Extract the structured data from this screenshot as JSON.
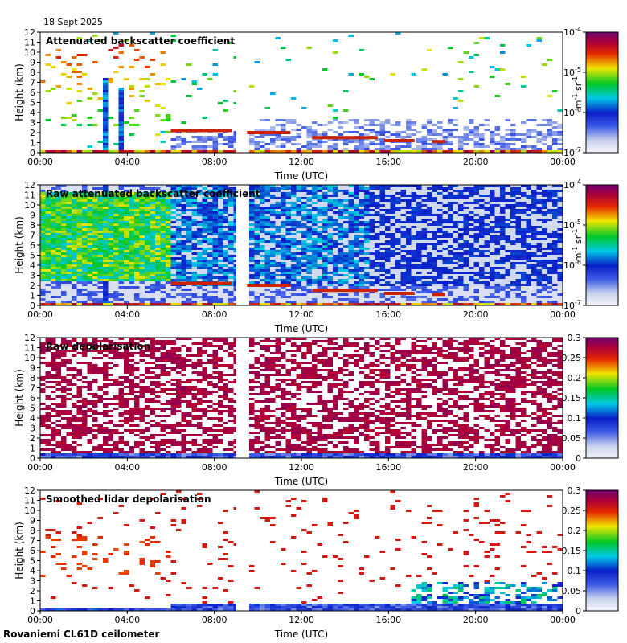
{
  "date_label": "18 Sept 2025",
  "site_label": "Rovaniemi CL61D ceilometer",
  "chart_data": [
    {
      "type": "heatmap",
      "title": "Attenuated backscatter coefficient",
      "xlabel": "Time (UTC)",
      "ylabel": "Height (km)",
      "x_ticks": [
        "00:00",
        "04:00",
        "08:00",
        "12:00",
        "16:00",
        "20:00",
        "00:00"
      ],
      "y_ticks": [
        "0",
        "1",
        "2",
        "3",
        "4",
        "5",
        "6",
        "7",
        "8",
        "9",
        "10",
        "11",
        "12"
      ],
      "ylim": [
        0,
        12
      ],
      "xlim_hours": [
        0,
        24
      ],
      "data_gap_hours": [
        9.0,
        9.45
      ],
      "colorbar": {
        "scale": "log",
        "range": [
          1e-07,
          0.0001
        ],
        "tick_labels": [
          "10^-7",
          "10^-6",
          "10^-5",
          "10^-4"
        ],
        "unit": "m^-1 sr^-1"
      },
      "features": [
        {
          "name": "cloud layer",
          "t_start": 6.0,
          "t_end": 8.8,
          "height_km": 2.2
        },
        {
          "name": "cloud layer",
          "t_start": 9.5,
          "t_end": 11.5,
          "height_km": 2.0
        },
        {
          "name": "cloud layer",
          "t_start": 12.5,
          "t_end": 15.5,
          "height_km": 1.5
        },
        {
          "name": "cloud layer",
          "t_start": 15.8,
          "t_end": 17.2,
          "height_km": 1.2
        },
        {
          "name": "cloud layer",
          "t_start": 18.0,
          "t_end": 18.6,
          "height_km": 1.1
        }
      ]
    },
    {
      "type": "heatmap",
      "title": "Raw attenuated backscatter coefficient",
      "xlabel": "Time (UTC)",
      "ylabel": "Height (km)",
      "x_ticks": [
        "00:00",
        "04:00",
        "08:00",
        "12:00",
        "16:00",
        "20:00",
        "00:00"
      ],
      "y_ticks": [
        "0",
        "1",
        "2",
        "3",
        "4",
        "5",
        "6",
        "7",
        "8",
        "9",
        "10",
        "11",
        "12"
      ],
      "ylim": [
        0,
        12
      ],
      "xlim_hours": [
        0,
        24
      ],
      "data_gap_hours": [
        9.0,
        9.45
      ],
      "colorbar": {
        "scale": "log",
        "range": [
          1e-07,
          0.0001
        ],
        "tick_labels": [
          "10^-7",
          "10^-6",
          "10^-5",
          "10^-4"
        ],
        "unit": "m^-1 sr^-1"
      }
    },
    {
      "type": "heatmap",
      "title": "Raw depolarisation",
      "xlabel": "Time (UTC)",
      "ylabel": "Height (km)",
      "x_ticks": [
        "00:00",
        "04:00",
        "08:00",
        "12:00",
        "16:00",
        "20:00",
        "00:00"
      ],
      "y_ticks": [
        "0",
        "1",
        "2",
        "3",
        "4",
        "5",
        "6",
        "7",
        "8",
        "9",
        "10",
        "11",
        "12"
      ],
      "ylim": [
        0,
        12
      ],
      "xlim_hours": [
        0,
        24
      ],
      "data_gap_hours": [
        9.0,
        9.45
      ],
      "colorbar": {
        "scale": "linear",
        "range": [
          0,
          0.3
        ],
        "tick_labels": [
          "0",
          "0.05",
          "0.1",
          "0.15",
          "0.2",
          "0.25",
          "0.3"
        ]
      }
    },
    {
      "type": "heatmap",
      "title": "Smoothed lidar depolarisation",
      "xlabel": "Time (UTC)",
      "ylabel": "Height (km)",
      "x_ticks": [
        "00:00",
        "04:00",
        "08:00",
        "12:00",
        "16:00",
        "20:00",
        "00:00"
      ],
      "y_ticks": [
        "0",
        "1",
        "2",
        "3",
        "4",
        "5",
        "6",
        "7",
        "8",
        "9",
        "10",
        "11",
        "12"
      ],
      "ylim": [
        0,
        12
      ],
      "xlim_hours": [
        0,
        24
      ],
      "data_gap_hours": [
        9.0,
        9.45
      ],
      "colorbar": {
        "scale": "linear",
        "range": [
          0,
          0.3
        ],
        "tick_labels": [
          "0",
          "0.05",
          "0.1",
          "0.15",
          "0.2",
          "0.25",
          "0.3"
        ]
      }
    }
  ]
}
